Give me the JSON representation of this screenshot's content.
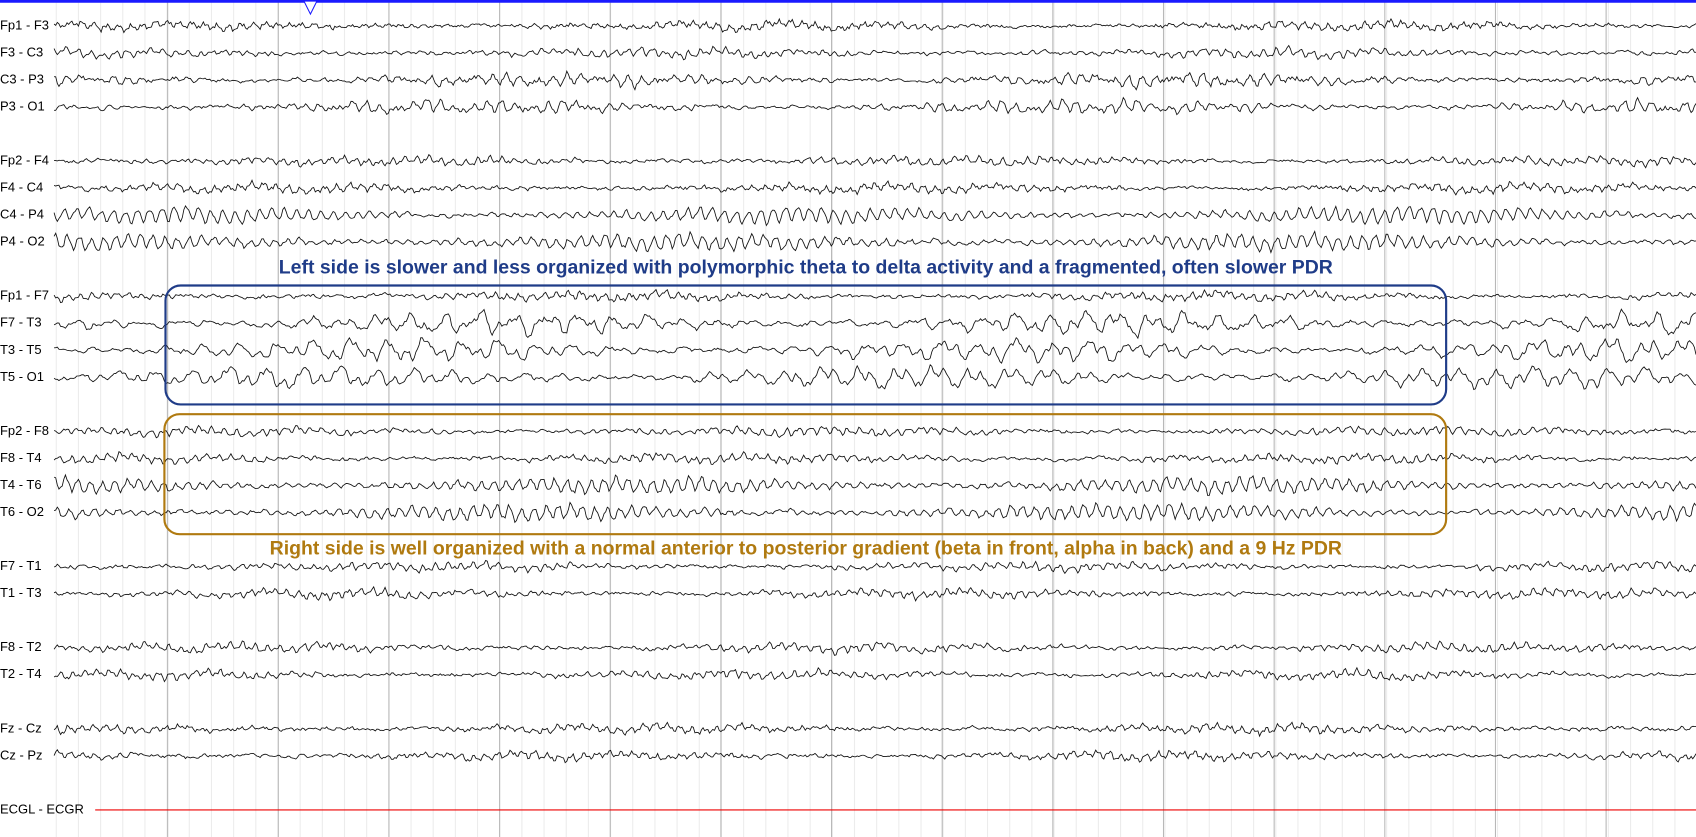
{
  "channels": [
    "Fp1 - F3",
    "F3 - C3",
    "C3 - P3",
    "P3 - O1",
    "Fp2 - F4",
    "F4 - C4",
    "C4 - P4",
    "P4 - O2",
    "Fp1 - F7",
    "F7 - T3",
    "T3 - T5",
    "T5 - O1",
    "Fp2 - F8",
    "F8 - T4",
    "T4 - T6",
    "T6 - O2",
    "F7 - T1",
    "T1 - T3",
    "F8 - T2",
    "T2 - T4",
    "Fz - Cz",
    "Cz - Pz",
    "ECGL - ECGR"
  ],
  "annotations": {
    "left": "Left side is slower and less organized with polymorphic theta to delta activity and a fragmented, often slower PDR",
    "right": "Right side is well organized with a normal anterior to posterior gradient (beta in front, alpha in back) and a 9 Hz PDR"
  }
}
